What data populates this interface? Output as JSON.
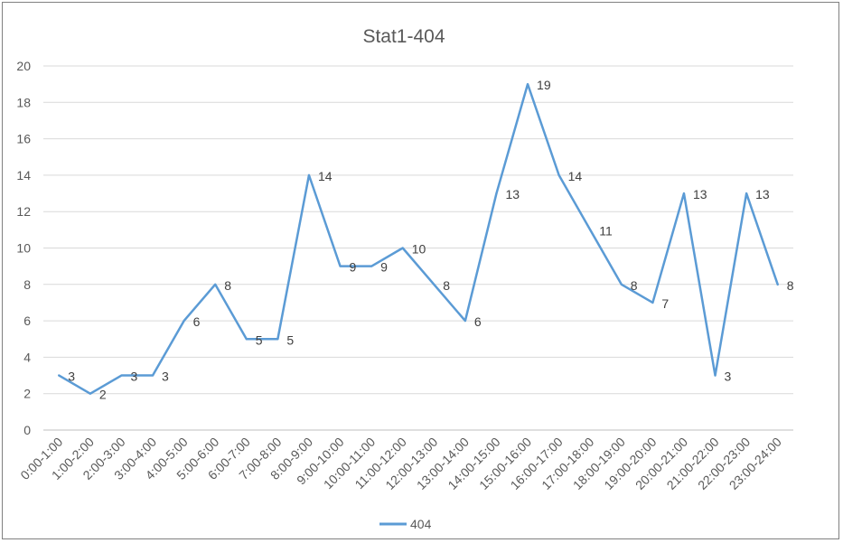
{
  "chart_data": {
    "type": "line",
    "title": "Stat1-404",
    "xlabel": "",
    "ylabel": "",
    "ylim": [
      0,
      20
    ],
    "yticks": [
      0,
      2,
      4,
      6,
      8,
      10,
      12,
      14,
      16,
      18,
      20
    ],
    "grid": true,
    "legend": "bottom",
    "categories": [
      "0:00-1:00",
      "1:00-2:00",
      "2:00-3:00",
      "3:00-4:00",
      "4:00-5:00",
      "5:00-6:00",
      "6:00-7:00",
      "7:00-8:00",
      "8:00-9:00",
      "9:00-10:00",
      "10:00-11:00",
      "11:00-12:00",
      "12:00-13:00",
      "13:00-14:00",
      "14:00-15:00",
      "15:00-16:00",
      "16:00-17:00",
      "17:00-18:00",
      "18:00-19:00",
      "19:00-20:00",
      "20:00-21:00",
      "21:00-22:00",
      "22:00-23:00",
      "23:00-24:00"
    ],
    "series": [
      {
        "name": "404",
        "color": "#5B9BD5",
        "values": [
          3,
          2,
          3,
          3,
          6,
          8,
          5,
          5,
          14,
          9,
          9,
          10,
          8,
          6,
          13,
          19,
          14,
          11,
          8,
          7,
          13,
          3,
          13,
          8
        ]
      }
    ]
  }
}
